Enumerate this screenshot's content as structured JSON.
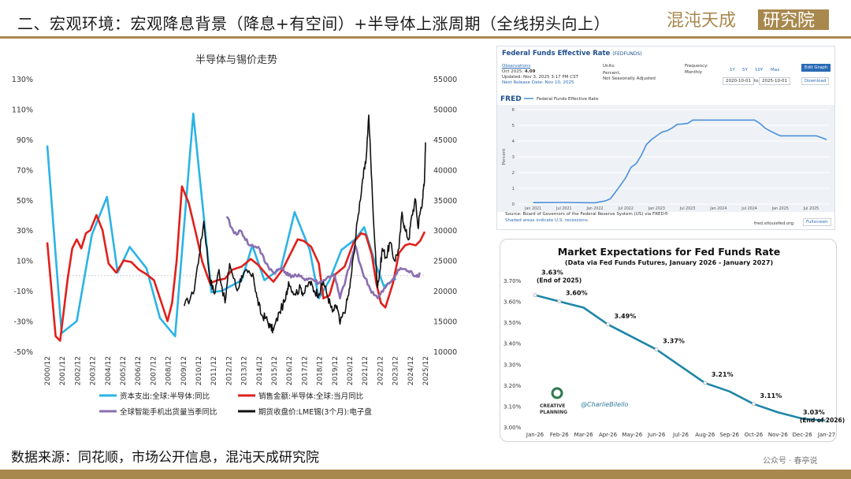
{
  "slide": {
    "title": "二、宏观环境：宏观降息背景（降息+有空间）+半导体上涨周期（全线拐头向上）",
    "logo_text": "混沌天成研究院",
    "source": "数据来源：同花顺，市场公开信息，混沌天成研究院",
    "watermark": "公众号 · 春亭说"
  },
  "colors": {
    "accent": "#a8884d",
    "capex": "#2bb3e6",
    "sales": "#e0201b",
    "phone": "#8a6fb0",
    "tin": "#111111"
  },
  "chart_data": [
    {
      "type": "line",
      "title": "半导体与锡价走势",
      "x_ticks": [
        "2000/12",
        "2001/12",
        "2002/12",
        "2003/12",
        "2004/12",
        "2005/12",
        "2006/12",
        "2007/12",
        "2008/12",
        "2009/12",
        "2010/12",
        "2011/12",
        "2012/12",
        "2013/12",
        "2014/12",
        "2015/12",
        "2016/12",
        "2017/12",
        "2018/12",
        "2019/12",
        "2020/12",
        "2021/12",
        "2022/12",
        "2023/12",
        "2024/12",
        "2025/12"
      ],
      "y_left": {
        "min": -50,
        "max": 130,
        "step": 20,
        "suffix": "%"
      },
      "y_right": {
        "min": 10000,
        "max": 55000,
        "step": 5000
      },
      "legend_placement": "bottom",
      "series": [
        {
          "name": "资本支出:全球:半导体:同比",
          "axis": "left",
          "color": "#2bb3e6",
          "points": [
            [
              2000.95,
              86
            ],
            [
              2001.9,
              -38
            ],
            [
              2002.9,
              -30
            ],
            [
              2003.9,
              27
            ],
            [
              2004.9,
              52
            ],
            [
              2005.6,
              2
            ],
            [
              2006.4,
              19
            ],
            [
              2007.5,
              5
            ],
            [
              2008.4,
              -28
            ],
            [
              2009.4,
              -40
            ],
            [
              2010.6,
              107
            ],
            [
              2011.8,
              -11
            ],
            [
              2012.5,
              -10
            ],
            [
              2013.8,
              -3
            ],
            [
              2014.5,
              20
            ],
            [
              2015.3,
              -3
            ],
            [
              2016.4,
              5
            ],
            [
              2017.3,
              42
            ],
            [
              2018.3,
              17
            ],
            [
              2018.9,
              -15
            ],
            [
              2019.6,
              -3
            ],
            [
              2020.4,
              17
            ],
            [
              2021.3,
              24
            ],
            [
              2021.9,
              32
            ],
            [
              2022.6,
              9
            ],
            [
              2023.2,
              -7
            ],
            [
              2024.0,
              -2
            ]
          ]
        },
        {
          "name": "销售金额:半导体:全球:当月同比",
          "axis": "left",
          "color": "#e0201b",
          "points": [
            [
              2000.95,
              22
            ],
            [
              2001.5,
              -40
            ],
            [
              2001.8,
              -43
            ],
            [
              2002.3,
              -2
            ],
            [
              2002.6,
              18
            ],
            [
              2002.9,
              24
            ],
            [
              2003.2,
              18
            ],
            [
              2003.5,
              28
            ],
            [
              2003.8,
              30
            ],
            [
              2004.2,
              40
            ],
            [
              2004.6,
              30
            ],
            [
              2005.0,
              8
            ],
            [
              2005.5,
              2
            ],
            [
              2006.0,
              10
            ],
            [
              2006.5,
              9
            ],
            [
              2007.0,
              4
            ],
            [
              2007.5,
              1
            ],
            [
              2008.0,
              -3
            ],
            [
              2008.5,
              -18
            ],
            [
              2008.9,
              -30
            ],
            [
              2009.2,
              -18
            ],
            [
              2009.5,
              10
            ],
            [
              2009.85,
              59
            ],
            [
              2010.3,
              48
            ],
            [
              2010.8,
              27
            ],
            [
              2011.2,
              9
            ],
            [
              2011.7,
              -5
            ],
            [
              2012.2,
              -3
            ],
            [
              2012.7,
              -2
            ],
            [
              2013.2,
              4
            ],
            [
              2013.8,
              6
            ],
            [
              2014.4,
              11
            ],
            [
              2014.9,
              7
            ],
            [
              2015.5,
              0
            ],
            [
              2015.9,
              -4
            ],
            [
              2016.5,
              4
            ],
            [
              2017.0,
              14
            ],
            [
              2017.5,
              24
            ],
            [
              2017.9,
              23
            ],
            [
              2018.4,
              19
            ],
            [
              2018.9,
              8
            ],
            [
              2019.2,
              -15
            ],
            [
              2019.6,
              -13
            ],
            [
              2020.0,
              1
            ],
            [
              2020.6,
              6
            ],
            [
              2021.2,
              22
            ],
            [
              2021.7,
              28
            ],
            [
              2022.0,
              27
            ],
            [
              2022.4,
              14
            ],
            [
              2022.7,
              -5
            ],
            [
              2023.0,
              -18
            ],
            [
              2023.3,
              -21
            ],
            [
              2023.8,
              -5
            ],
            [
              2024.2,
              15
            ],
            [
              2024.6,
              20
            ],
            [
              2024.9,
              21
            ],
            [
              2025.3,
              20
            ],
            [
              2025.6,
              23
            ],
            [
              2025.9,
              29
            ]
          ]
        },
        {
          "name": "全球智能手机出货量当季同比",
          "axis": "left",
          "color": "#8a6fb0",
          "points": [
            [
              2012.8,
              39
            ],
            [
              2013.3,
              28
            ],
            [
              2013.8,
              29
            ],
            [
              2014.3,
              20
            ],
            [
              2014.9,
              19
            ],
            [
              2015.4,
              8
            ],
            [
              2015.9,
              2
            ],
            [
              2016.5,
              5
            ],
            [
              2016.9,
              0
            ],
            [
              2017.4,
              0
            ],
            [
              2017.9,
              -2
            ],
            [
              2018.4,
              -2
            ],
            [
              2018.9,
              -5
            ],
            [
              2019.4,
              -2
            ],
            [
              2019.9,
              1
            ],
            [
              2020.3,
              -15
            ],
            [
              2020.9,
              5
            ],
            [
              2021.3,
              20
            ],
            [
              2021.8,
              2
            ],
            [
              2022.3,
              -9
            ],
            [
              2022.8,
              -15
            ],
            [
              2023.3,
              -8
            ],
            [
              2023.8,
              -2
            ],
            [
              2024.3,
              5
            ],
            [
              2024.8,
              3
            ],
            [
              2025.3,
              0
            ],
            [
              2025.6,
              1
            ]
          ]
        },
        {
          "name": "期货收盘价:LME锡(3个月):电子盘",
          "axis": "right",
          "color": "#111111",
          "points": [
            [
              2010.0,
              17500
            ],
            [
              2010.6,
              19500
            ],
            [
              2011.0,
              26000
            ],
            [
              2011.3,
              31500
            ],
            [
              2011.7,
              22000
            ],
            [
              2012.0,
              19500
            ],
            [
              2012.3,
              23500
            ],
            [
              2012.7,
              18000
            ],
            [
              2013.0,
              24500
            ],
            [
              2013.5,
              20000
            ],
            [
              2013.8,
              22500
            ],
            [
              2014.2,
              23000
            ],
            [
              2014.6,
              22000
            ],
            [
              2014.8,
              19000
            ],
            [
              2015.1,
              16000
            ],
            [
              2015.4,
              15500
            ],
            [
              2015.7,
              14000
            ],
            [
              2015.9,
              13500
            ],
            [
              2016.3,
              16500
            ],
            [
              2016.7,
              18500
            ],
            [
              2016.9,
              21500
            ],
            [
              2017.3,
              19500
            ],
            [
              2017.7,
              20500
            ],
            [
              2017.9,
              19500
            ],
            [
              2018.3,
              21500
            ],
            [
              2018.6,
              20000
            ],
            [
              2018.9,
              19500
            ],
            [
              2019.2,
              21500
            ],
            [
              2019.5,
              19000
            ],
            [
              2019.8,
              16500
            ],
            [
              2020.1,
              17500
            ],
            [
              2020.3,
              14500
            ],
            [
              2020.7,
              17500
            ],
            [
              2020.95,
              20500
            ],
            [
              2021.2,
              26000
            ],
            [
              2021.5,
              32500
            ],
            [
              2021.8,
              38500
            ],
            [
              2022.0,
              41000
            ],
            [
              2022.2,
              49000
            ],
            [
              2022.45,
              35000
            ],
            [
              2022.75,
              21000
            ],
            [
              2022.9,
              22500
            ],
            [
              2023.1,
              27000
            ],
            [
              2023.35,
              25500
            ],
            [
              2023.6,
              28000
            ],
            [
              2023.9,
              25000
            ],
            [
              2024.2,
              27000
            ],
            [
              2024.4,
              33000
            ],
            [
              2024.6,
              30000
            ],
            [
              2024.85,
              28500
            ],
            [
              2025.05,
              32500
            ],
            [
              2025.3,
              35000
            ],
            [
              2025.45,
              30500
            ],
            [
              2025.6,
              33000
            ],
            [
              2025.75,
              35000
            ],
            [
              2025.88,
              38000
            ],
            [
              2025.95,
              44500
            ]
          ]
        }
      ]
    },
    {
      "type": "line",
      "title": "Federal Funds Effective Rate",
      "series_code": "FEDFUNDS",
      "ylabel": "Percent",
      "x_ticks": [
        "Jan 2021",
        "Jul 2021",
        "Jan 2022",
        "Jul 2022",
        "Jan 2023",
        "Jul 2023",
        "Jan 2024",
        "Jul 2024",
        "Jan 2025",
        "Jul 2025"
      ],
      "ylim": [
        0,
        6
      ],
      "y_ticks": [
        0,
        1,
        2,
        3,
        4,
        5,
        6
      ],
      "series": [
        {
          "name": "Federal Funds Effective Rate",
          "color": "#4a90d9",
          "points": [
            [
              "2021-01",
              0.09
            ],
            [
              "2021-07",
              0.1
            ],
            [
              "2022-01",
              0.08
            ],
            [
              "2022-03",
              0.2
            ],
            [
              "2022-04",
              0.33
            ],
            [
              "2022-05",
              0.77
            ],
            [
              "2022-06",
              1.21
            ],
            [
              "2022-07",
              1.68
            ],
            [
              "2022-08",
              2.33
            ],
            [
              "2022-09",
              2.56
            ],
            [
              "2022-10",
              3.08
            ],
            [
              "2022-11",
              3.78
            ],
            [
              "2022-12",
              4.1
            ],
            [
              "2023-01",
              4.33
            ],
            [
              "2023-02",
              4.57
            ],
            [
              "2023-03",
              4.65
            ],
            [
              "2023-04",
              4.83
            ],
            [
              "2023-05",
              5.06
            ],
            [
              "2023-06",
              5.08
            ],
            [
              "2023-07",
              5.12
            ],
            [
              "2023-08",
              5.33
            ],
            [
              "2023-12",
              5.33
            ],
            [
              "2024-06",
              5.33
            ],
            [
              "2024-08",
              5.33
            ],
            [
              "2024-09",
              5.13
            ],
            [
              "2024-10",
              4.83
            ],
            [
              "2024-11",
              4.64
            ],
            [
              "2024-12",
              4.48
            ],
            [
              "2025-01",
              4.33
            ],
            [
              "2025-08",
              4.33
            ],
            [
              "2025-09",
              4.22
            ],
            [
              "2025-10",
              4.09
            ]
          ]
        }
      ]
    },
    {
      "type": "line",
      "title": "Market Expectations for Fed Funds Rate",
      "subtitle": "(Data via Fed Funds Futures, January 2026 - January 2027)",
      "categories": [
        "Jan-26",
        "Feb-26",
        "Mar-26",
        "Apr-26",
        "May-26",
        "Jun-26",
        "Jul-26",
        "Aug-26",
        "Sep-26",
        "Oct-26",
        "Nov-26",
        "Dec-26",
        "Jan-27"
      ],
      "values": [
        3.63,
        3.6,
        3.57,
        3.49,
        3.43,
        3.37,
        3.29,
        3.21,
        3.17,
        3.11,
        3.07,
        3.04,
        3.03
      ],
      "ylim": [
        3.0,
        3.7
      ],
      "y_ticks": [
        "3.00%",
        "3.10%",
        "3.20%",
        "3.30%",
        "3.40%",
        "3.50%",
        "3.60%",
        "3.70%"
      ],
      "labels": [
        {
          "index": 0,
          "text": "3.63%",
          "note": "(End of 2025)"
        },
        {
          "index": 1,
          "text": "3.60%"
        },
        {
          "index": 3,
          "text": "3.49%"
        },
        {
          "index": 5,
          "text": "3.37%"
        },
        {
          "index": 7,
          "text": "3.21%"
        },
        {
          "index": 9,
          "text": "3.11%"
        },
        {
          "index": 12,
          "text": "3.03%",
          "note": "(End of 2026)"
        }
      ],
      "brand": {
        "logo": "CREATIVE PLANNING",
        "handle": "@CharlieBilello"
      }
    }
  ],
  "fred_ui": {
    "tab_observations": "Observations",
    "obs_date": "Oct 2025:",
    "obs_value": "4.09",
    "updated": "Updated: Nov 3, 2025 3:17 PM CST",
    "next_release": "Next Release Date: Nov 10, 2025",
    "units_label": "Units:",
    "units_value": "Percent,",
    "units_value2": "Not Seasonally Adjusted",
    "freq_label": "Frequency:",
    "freq_value": "Monthly",
    "range_buttons": [
      "1Y",
      "5Y",
      "10Y",
      "Max"
    ],
    "date_from": "2020-10-01",
    "date_to_word": "to",
    "date_to": "2025-10-01",
    "edit_graph": "Edit Graph",
    "download": "Download",
    "fred_logo": "FRED",
    "legend_series": "Federal Funds Effective Rate",
    "source_note": "Source: Board of Governors of the Federal Reserve System (US) via FRED®",
    "shade_note": "Shaded areas indicate U.S. recessions.",
    "site": "fred.stlouisfed.org",
    "fullscreen": "Fullscreen"
  }
}
